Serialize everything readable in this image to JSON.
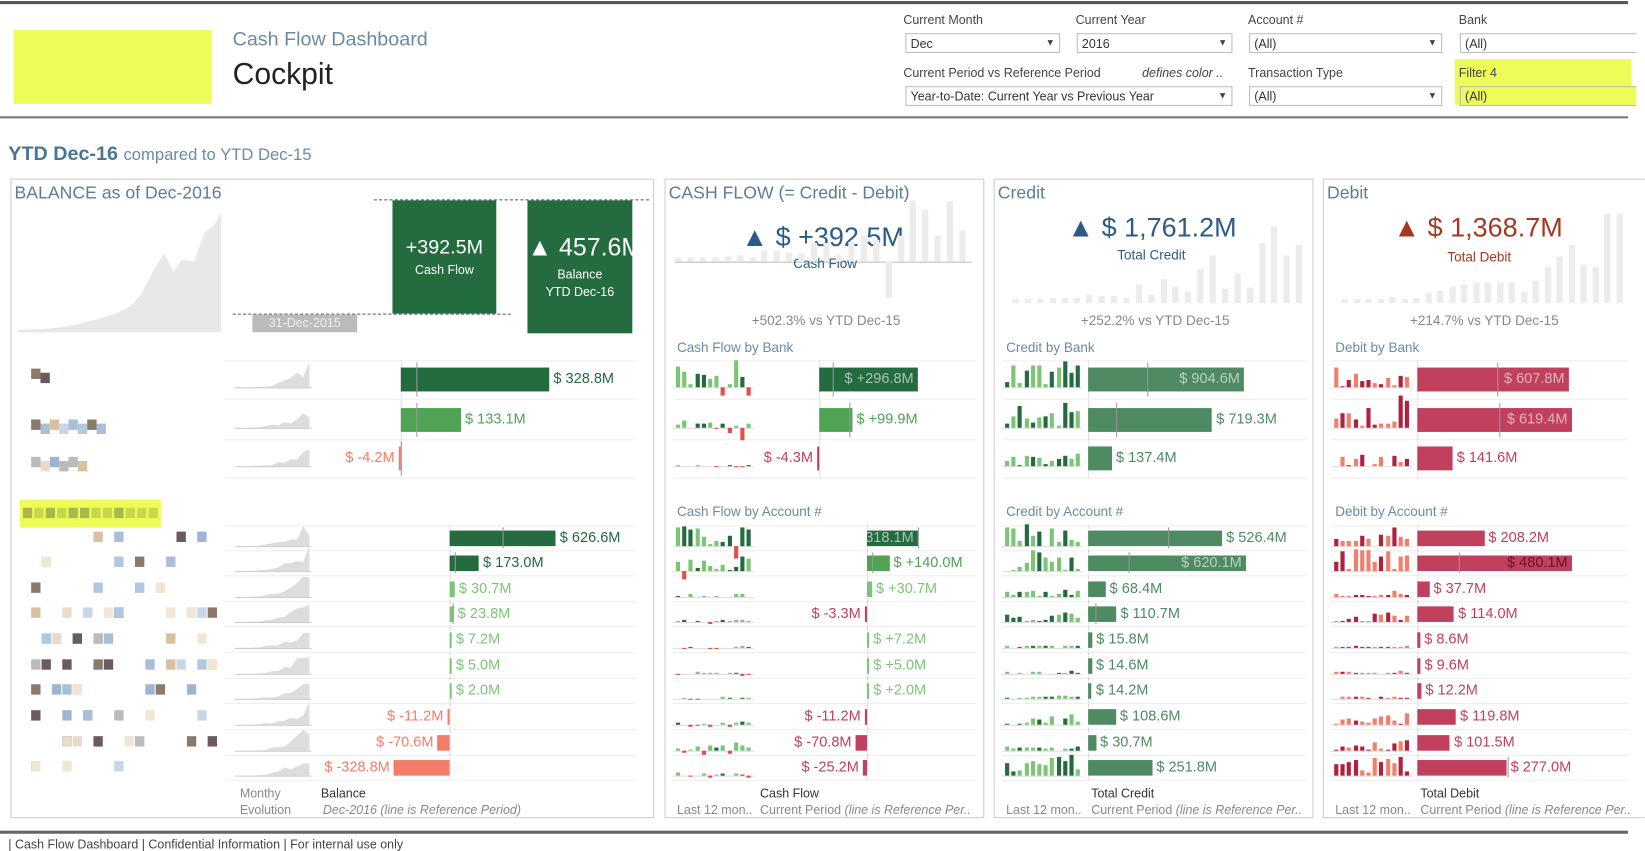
{
  "header": {
    "app_title": "Cash Flow Dashboard",
    "page_title": "Cockpit"
  },
  "filters": {
    "current_month": {
      "label": "Current Month",
      "value": "Dec"
    },
    "current_year": {
      "label": "Current Year",
      "value": "2016"
    },
    "account": {
      "label": "Account #",
      "value": "(All)"
    },
    "bank": {
      "label": "Bank",
      "value": "(All)"
    },
    "period": {
      "label": "Current Period vs Reference Period",
      "note": "defines color ..",
      "value": "Year-to-Date: Current Year vs Previous Year"
    },
    "transaction_type": {
      "label": "Transaction Type",
      "value": "(All)"
    },
    "filter4": {
      "label": "Filter 4",
      "value": "(All)"
    }
  },
  "period_heading": {
    "main": "YTD Dec-16",
    "compare": "compared to YTD Dec-15"
  },
  "colors": {
    "dark_green": "#246b3f",
    "mid_green": "#4fa352",
    "light_green": "#7cc576",
    "credit_green": "#4e8a62",
    "salmon": "#f47c6a",
    "debit_red": "#c0405e",
    "title_blue": "#5c7d96",
    "kpi_blue": "#2c5b87",
    "kpi_red": "#a23a22",
    "highlight": "#eefc5a"
  },
  "balance": {
    "title": "BALANCE as of Dec-2016",
    "start_label": "31-Dec-2015",
    "cash_flow_value": "+392.5M",
    "cash_flow_label": "Cash Flow",
    "balance_value": "457.6M",
    "balance_label": "Balance",
    "balance_period": "YTD Dec-16",
    "footer": {
      "col1a": "Monthy",
      "col1b": "Evolution",
      "col2a": "Balance",
      "col2b": "Dec-2016 (line is Reference Period)"
    },
    "banks": [
      {
        "value": 328.8,
        "label": "$ 328.8M",
        "ref": 35
      },
      {
        "value": 133.1,
        "label": "$ 133.1M",
        "ref": 35
      },
      {
        "value": -4.2,
        "label": "$ -4.2M",
        "ref": 0
      }
    ],
    "accounts": [
      {
        "value": 626.6,
        "label": "$ 626.6M",
        "ref": 310
      },
      {
        "value": 173.0,
        "label": "$ 173.0M",
        "ref": 30
      },
      {
        "value": 30.7,
        "label": "$ 30.7M"
      },
      {
        "value": 23.8,
        "label": "$ 23.8M",
        "ref": 20
      },
      {
        "value": 7.2,
        "label": "$ 7.2M"
      },
      {
        "value": 5.0,
        "label": "$ 5.0M"
      },
      {
        "value": 2.0,
        "label": "$ 2.0M"
      },
      {
        "value": -11.2,
        "label": "$ -11.2M"
      },
      {
        "value": -70.6,
        "label": "$ -70.6M"
      },
      {
        "value": -328.8,
        "label": "$ -328.8M"
      }
    ]
  },
  "cash_flow": {
    "title": "CASH FLOW (= Credit - Debit)",
    "kpi": "$ +392.5M",
    "kpi_label": "Cash Flow",
    "change": "+502.3% vs YTD Dec-15",
    "by_bank_title": "Cash Flow by Bank",
    "by_account_title": "Cash Flow by Account #",
    "footer": {
      "col1": "Last 12 mon..",
      "col2a": "Cash Flow",
      "col2b": "Current Period",
      "col2c": "(line is Reference Per.."
    },
    "banks": [
      {
        "value": 296.8,
        "label": "$ +296.8M",
        "ref": 40
      },
      {
        "value": 99.9,
        "label": "$ +99.9M",
        "ref": 90
      },
      {
        "value": -4.3,
        "label": "$ -4.3M"
      }
    ],
    "accounts": [
      {
        "value": 318.1,
        "label": "$ +318.1M",
        "ref": 318
      },
      {
        "value": 140.0,
        "label": "$ +140.0M",
        "ref": 30
      },
      {
        "value": 30.7,
        "label": "$ +30.7M"
      },
      {
        "value": -3.3,
        "label": "$ -3.3M"
      },
      {
        "value": 7.2,
        "label": "$ +7.2M"
      },
      {
        "value": 5.0,
        "label": "$ +5.0M"
      },
      {
        "value": 2.0,
        "label": "$ +2.0M"
      },
      {
        "value": -11.2,
        "label": "$ -11.2M"
      },
      {
        "value": -70.8,
        "label": "$ -70.8M"
      },
      {
        "value": -25.2,
        "label": "$ -25.2M"
      }
    ]
  },
  "credit": {
    "title": "Credit",
    "kpi": "$ 1,761.2M",
    "kpi_label": "Total Credit",
    "change": "+252.2% vs YTD Dec-15",
    "by_bank_title": "Credit by Bank",
    "by_account_title": "Credit by Account #",
    "footer": {
      "col1": "Last 12 mon..",
      "col2a": "Total Credit",
      "col2b": "Current Period",
      "col2c": "(line is Reference Per.."
    },
    "banks": [
      {
        "value": 904.6,
        "label": "$ 904.6M",
        "ref": 345
      },
      {
        "value": 719.3,
        "label": "$ 719.3M",
        "ref": 160
      },
      {
        "value": 137.4,
        "label": "$ 137.4M"
      }
    ],
    "accounts": [
      {
        "value": 526.4,
        "label": "$ 526.4M",
        "ref": 315
      },
      {
        "value": 620.1,
        "label": "$ 620.1M",
        "ref": 160
      },
      {
        "value": 68.4,
        "label": "$ 68.4M"
      },
      {
        "value": 110.7,
        "label": "$ 110.7M",
        "ref": 30
      },
      {
        "value": 15.8,
        "label": "$ 15.8M"
      },
      {
        "value": 14.6,
        "label": "$ 14.6M"
      },
      {
        "value": 14.2,
        "label": "$ 14.2M"
      },
      {
        "value": 108.6,
        "label": "$ 108.6M"
      },
      {
        "value": 30.7,
        "label": "$ 30.7M"
      },
      {
        "value": 251.8,
        "label": "$ 251.8M"
      }
    ]
  },
  "debit": {
    "title": "Debit",
    "kpi": "$ 1,368.7M",
    "kpi_label": "Total Debit",
    "change": "+214.7% vs YTD Dec-15",
    "by_bank_title": "Debit by Bank",
    "by_account_title": "Debit by Account #",
    "footer": {
      "col1": "Last 12 mon..",
      "col2a": "Total Debit",
      "col2b": "Current Period",
      "col2c": "(line is Reference Per.."
    },
    "banks": [
      {
        "value": 607.8,
        "label": "$ 607.8M",
        "ref": 320
      },
      {
        "value": 619.4,
        "label": "$ 619.4M",
        "ref": 330
      },
      {
        "value": 141.6,
        "label": "$ 141.6M"
      }
    ],
    "accounts": [
      {
        "value": 208.2,
        "label": "$ 208.2M"
      },
      {
        "value": 480.1,
        "label": "$ 480.1M",
        "ref": 130
      },
      {
        "value": 37.7,
        "label": "$ 37.7M"
      },
      {
        "value": 114.0,
        "label": "$ 114.0M"
      },
      {
        "value": 8.6,
        "label": "$ 8.6M"
      },
      {
        "value": 9.6,
        "label": "$ 9.6M"
      },
      {
        "value": 12.2,
        "label": "$ 12.2M"
      },
      {
        "value": 119.8,
        "label": "$ 119.8M"
      },
      {
        "value": 101.5,
        "label": "$ 101.5M"
      },
      {
        "value": 277.0,
        "label": "$ 277.0M",
        "ref": 280
      }
    ]
  },
  "footer_text": "| Cash Flow Dashboard | Confidential Information | For internal use only"
}
